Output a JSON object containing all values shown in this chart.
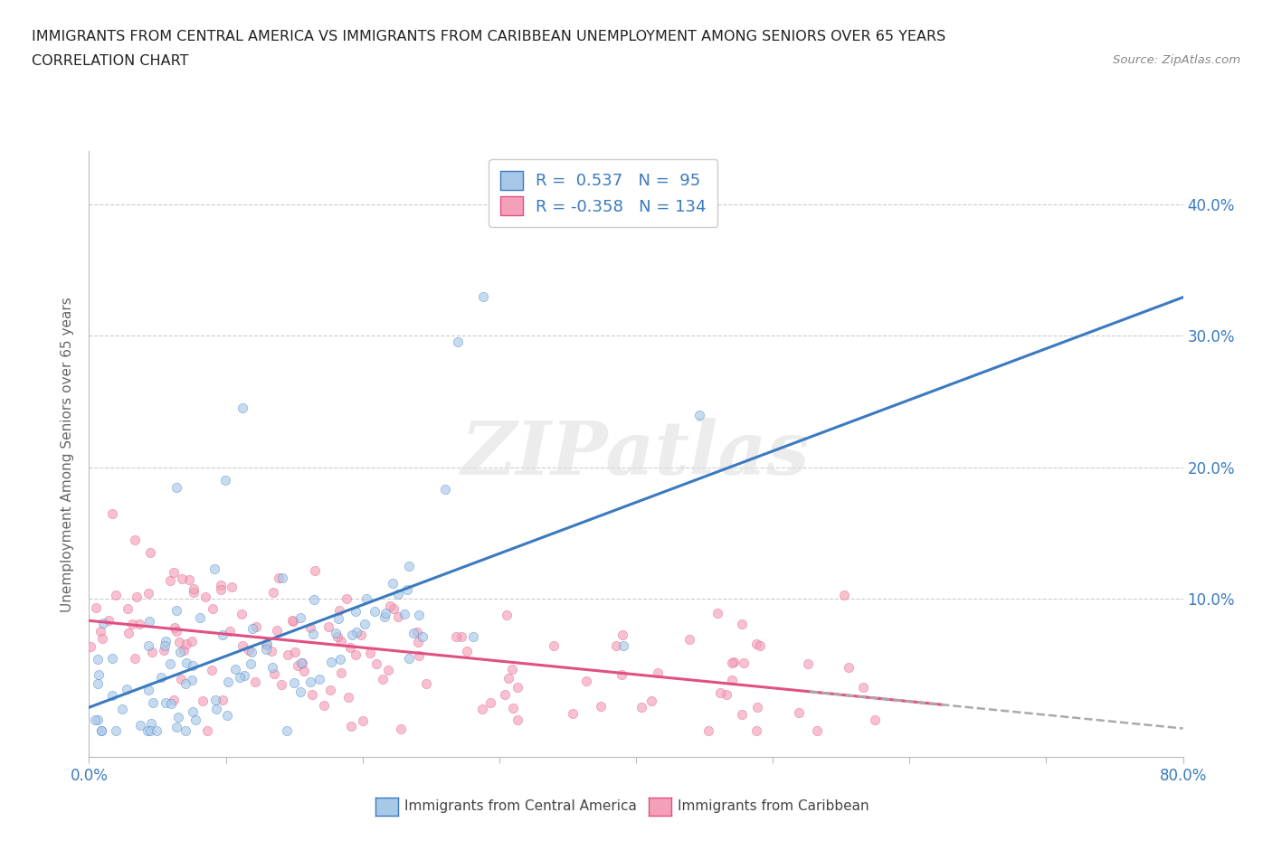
{
  "title_line1": "IMMIGRANTS FROM CENTRAL AMERICA VS IMMIGRANTS FROM CARIBBEAN UNEMPLOYMENT AMONG SENIORS OVER 65 YEARS",
  "title_line2": "CORRELATION CHART",
  "source": "Source: ZipAtlas.com",
  "ylabel": "Unemployment Among Seniors over 65 years",
  "xlim": [
    0.0,
    0.8
  ],
  "ylim": [
    -0.02,
    0.44
  ],
  "xticks": [
    0.0,
    0.1,
    0.2,
    0.3,
    0.4,
    0.5,
    0.6,
    0.7,
    0.8
  ],
  "yticks": [
    0.0,
    0.1,
    0.2,
    0.3,
    0.4
  ],
  "R1": 0.537,
  "N1": 95,
  "R2": -0.358,
  "N2": 134,
  "color_blue": "#a8c8e8",
  "color_blue_line": "#3a7abf",
  "color_pink": "#f4a0b8",
  "color_pink_line": "#e05080",
  "color_blue_text": "#3a7abf",
  "watermark": "ZIPatlas",
  "background_color": "#ffffff",
  "grid_color": "#cccccc"
}
